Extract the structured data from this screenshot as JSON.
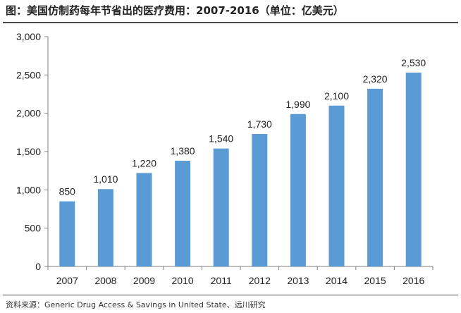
{
  "header": {
    "title": "图：美国仿制药每年节省出的医疗费用：2007-2016（单位：亿美元）"
  },
  "footer": {
    "source": "资料来源：Generic Drug Access & Savings in United State、远川研究"
  },
  "colors": {
    "bar": "#5b9bd5",
    "axis": "#7f7f7f",
    "rule": "#4a4a4a"
  },
  "chart_data": {
    "type": "bar",
    "title": "",
    "xlabel": "",
    "ylabel": "",
    "categories": [
      "2007",
      "2008",
      "2009",
      "2010",
      "2011",
      "2012",
      "2013",
      "2014",
      "2015",
      "2016"
    ],
    "values": [
      850,
      1010,
      1220,
      1380,
      1540,
      1730,
      1990,
      2100,
      2320,
      2530
    ],
    "value_labels": [
      "850",
      "1,010",
      "1,220",
      "1,380",
      "1,540",
      "1,730",
      "1,990",
      "2,100",
      "2,320",
      "2,530"
    ],
    "ylim": [
      0,
      3000
    ],
    "yticks": [
      0,
      500,
      1000,
      1500,
      2000,
      2500,
      3000
    ],
    "ytick_labels": [
      "0",
      "500",
      "1,000",
      "1,500",
      "2,000",
      "2,500",
      "3,000"
    ],
    "grid": false,
    "legend": "none"
  }
}
